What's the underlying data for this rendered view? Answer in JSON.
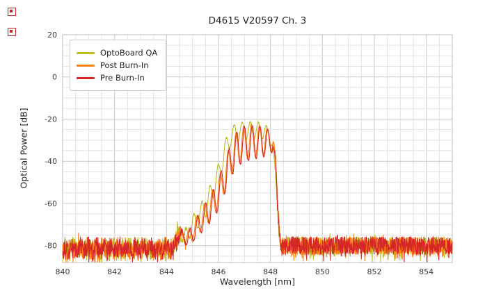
{
  "title": "D4615 V20597 Ch. 3",
  "chart_data": {
    "type": "line",
    "title": "D4615 V20597 Ch. 3",
    "xlabel": "Wavelength [nm]",
    "ylabel": "Optical Power [dB]",
    "xlim": [
      840,
      855
    ],
    "ylim": [
      -88,
      20
    ],
    "x_ticks": [
      840,
      842,
      844,
      846,
      848,
      850,
      852,
      854
    ],
    "y_ticks": [
      20,
      0,
      -20,
      -40,
      -60,
      -80
    ],
    "x_minor_step": 0.5,
    "y_minor_step": 5,
    "grid": true,
    "legend_position": "upper-left",
    "description": "Optical spectra: noise floor near -80 dB across 840-855 nm with a multimode emission peak between ~844.5 and ~848.3 nm reaching about -21 to -23 dB near 847 nm.",
    "series": [
      {
        "name": "OptoBoard QA",
        "color": "#bcbd22",
        "seed": 7,
        "envelope": [
          [
            840,
            -80
          ],
          [
            844.2,
            -80
          ],
          [
            844.45,
            -71.5
          ],
          [
            844.7,
            -73
          ],
          [
            845.0,
            -66
          ],
          [
            845.35,
            -59
          ],
          [
            845.7,
            -51
          ],
          [
            846.0,
            -41
          ],
          [
            846.25,
            -30
          ],
          [
            846.45,
            -24
          ],
          [
            846.7,
            -21.8
          ],
          [
            847.0,
            -21.2
          ],
          [
            847.4,
            -21.2
          ],
          [
            847.7,
            -22
          ],
          [
            847.95,
            -24
          ],
          [
            848.1,
            -31
          ],
          [
            848.22,
            -50
          ],
          [
            848.32,
            -72
          ],
          [
            848.4,
            -80
          ],
          [
            855,
            -80
          ]
        ],
        "ripple": {
          "period": 0.31,
          "phase": 846.6,
          "depth": [
            [
              844.3,
              3
            ],
            [
              844.9,
              8
            ],
            [
              845.5,
              11
            ],
            [
              846.0,
              10
            ],
            [
              846.5,
              9
            ],
            [
              847.5,
              8
            ],
            [
              848.0,
              6
            ],
            [
              848.25,
              2
            ],
            [
              848.4,
              0
            ]
          ]
        },
        "noise_amp": [
          [
            840,
            4.3
          ],
          [
            844.25,
            4.3
          ],
          [
            844.6,
            1.2
          ],
          [
            845.1,
            0.5
          ],
          [
            848.05,
            0.4
          ],
          [
            848.3,
            1.5
          ],
          [
            848.5,
            4.3
          ],
          [
            855,
            4.3
          ]
        ]
      },
      {
        "name": "Post Burn-In",
        "color": "#ff7f0e",
        "seed": 13,
        "envelope": [
          [
            840,
            -80
          ],
          [
            844.25,
            -80
          ],
          [
            844.5,
            -72
          ],
          [
            844.8,
            -73.5
          ],
          [
            845.15,
            -66.5
          ],
          [
            845.5,
            -59.5
          ],
          [
            845.9,
            -51
          ],
          [
            846.2,
            -41
          ],
          [
            846.5,
            -30
          ],
          [
            846.75,
            -24.8
          ],
          [
            847.05,
            -22.8
          ],
          [
            847.35,
            -22.4
          ],
          [
            847.65,
            -23
          ],
          [
            847.9,
            -24.5
          ],
          [
            848.1,
            -27
          ],
          [
            848.2,
            -38
          ],
          [
            848.3,
            -62
          ],
          [
            848.4,
            -80
          ],
          [
            855,
            -80
          ]
        ],
        "ripple": {
          "period": 0.302,
          "phase": 846.97,
          "depth": [
            [
              844.4,
              3
            ],
            [
              845.0,
              8
            ],
            [
              845.6,
              12
            ],
            [
              846.2,
              15
            ],
            [
              846.7,
              16.5
            ],
            [
              847.2,
              16
            ],
            [
              847.7,
              14
            ],
            [
              848.05,
              9
            ],
            [
              848.25,
              3
            ],
            [
              848.45,
              0
            ]
          ]
        },
        "noise_amp": [
          [
            840,
            4.3
          ],
          [
            844.25,
            4.3
          ],
          [
            844.6,
            1.2
          ],
          [
            845.1,
            0.5
          ],
          [
            848.05,
            0.4
          ],
          [
            848.3,
            1.5
          ],
          [
            848.5,
            4.3
          ],
          [
            855,
            4.3
          ]
        ]
      },
      {
        "name": "Pre Burn-In",
        "color": "#d62728",
        "seed": 29,
        "envelope": [
          [
            840,
            -80
          ],
          [
            844.25,
            -80
          ],
          [
            844.5,
            -72.5
          ],
          [
            844.8,
            -74
          ],
          [
            845.15,
            -67
          ],
          [
            845.5,
            -60
          ],
          [
            845.9,
            -51.5
          ],
          [
            846.2,
            -41.5
          ],
          [
            846.5,
            -30.5
          ],
          [
            846.75,
            -25.2
          ],
          [
            847.05,
            -23.4
          ],
          [
            847.35,
            -23
          ],
          [
            847.65,
            -23.5
          ],
          [
            847.9,
            -25
          ],
          [
            848.1,
            -27.5
          ],
          [
            848.2,
            -40
          ],
          [
            848.3,
            -65
          ],
          [
            848.4,
            -80
          ],
          [
            855,
            -80
          ]
        ],
        "ripple": {
          "period": 0.3,
          "phase": 847.0,
          "depth": [
            [
              844.4,
              3
            ],
            [
              845.0,
              8.5
            ],
            [
              845.6,
              12.5
            ],
            [
              846.2,
              15.5
            ],
            [
              846.7,
              17
            ],
            [
              847.2,
              16.5
            ],
            [
              847.7,
              14.5
            ],
            [
              848.05,
              9
            ],
            [
              848.25,
              3
            ],
            [
              848.45,
              0
            ]
          ]
        },
        "noise_amp": [
          [
            840,
            4.3
          ],
          [
            844.25,
            4.3
          ],
          [
            844.6,
            1.2
          ],
          [
            845.1,
            0.5
          ],
          [
            848.05,
            0.4
          ],
          [
            848.3,
            1.5
          ],
          [
            848.5,
            4.3
          ],
          [
            855,
            4.3
          ]
        ]
      }
    ]
  }
}
